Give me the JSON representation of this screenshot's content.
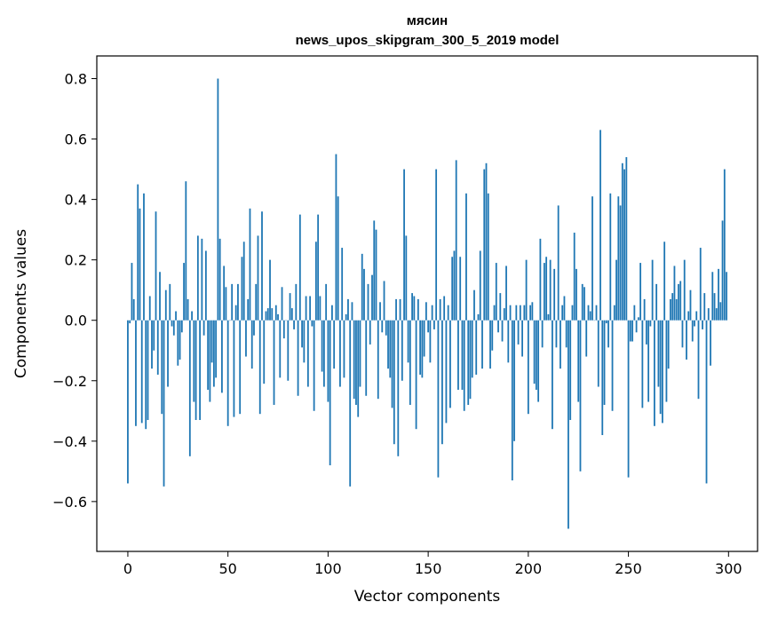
{
  "chart_data": {
    "type": "bar",
    "title": "мясин",
    "subtitle": "news_upos_skipgram_300_5_2019 model",
    "xlabel": "Vector components",
    "ylabel": "Components values",
    "xlim": [
      -15.5,
      314.5
    ],
    "ylim": [
      -0.765,
      0.875
    ],
    "xticks": [
      0,
      50,
      100,
      150,
      200,
      250,
      300
    ],
    "xtick_labels": [
      "0",
      "50",
      "100",
      "150",
      "200",
      "250",
      "300"
    ],
    "yticks": [
      -0.6,
      -0.4,
      -0.2,
      0.0,
      0.2,
      0.4,
      0.6,
      0.8
    ],
    "ytick_labels": [
      "−0.6",
      "−0.4",
      "−0.2",
      "0.0",
      "0.2",
      "0.4",
      "0.6",
      "0.8"
    ],
    "bar_color": "#1f77b4",
    "values": [
      -0.54,
      -0.01,
      0.19,
      0.07,
      -0.35,
      0.45,
      0.37,
      -0.34,
      0.42,
      -0.36,
      -0.33,
      0.08,
      -0.16,
      -0.1,
      0.36,
      -0.18,
      0.16,
      -0.31,
      -0.55,
      0.1,
      -0.22,
      0.12,
      -0.02,
      -0.05,
      0.03,
      -0.15,
      -0.13,
      -0.04,
      0.19,
      0.46,
      0.07,
      -0.45,
      0.03,
      -0.27,
      -0.33,
      0.28,
      -0.33,
      0.27,
      -0.05,
      0.23,
      -0.23,
      -0.27,
      -0.14,
      -0.22,
      -0.19,
      0.8,
      0.27,
      -0.24,
      0.18,
      0.11,
      -0.35,
      0.0,
      0.12,
      -0.32,
      0.05,
      0.12,
      -0.31,
      0.21,
      0.26,
      -0.12,
      0.07,
      0.37,
      -0.16,
      -0.05,
      0.12,
      0.28,
      -0.31,
      0.36,
      -0.21,
      0.03,
      0.04,
      0.2,
      0.04,
      -0.28,
      0.05,
      0.02,
      -0.19,
      0.11,
      -0.06,
      0.0,
      -0.2,
      0.09,
      0.04,
      -0.03,
      0.12,
      -0.25,
      0.35,
      -0.09,
      -0.14,
      0.08,
      -0.22,
      0.08,
      -0.02,
      -0.3,
      0.26,
      0.35,
      0.08,
      -0.17,
      -0.22,
      0.12,
      -0.27,
      -0.48,
      0.05,
      -0.16,
      0.55,
      0.41,
      -0.22,
      0.24,
      -0.19,
      0.02,
      0.07,
      -0.55,
      0.06,
      -0.26,
      -0.28,
      -0.32,
      -0.22,
      0.22,
      0.17,
      -0.25,
      0.12,
      -0.08,
      0.15,
      0.33,
      0.3,
      -0.26,
      0.06,
      -0.04,
      0.13,
      -0.05,
      -0.16,
      -0.19,
      -0.29,
      -0.41,
      0.07,
      -0.45,
      0.07,
      -0.2,
      0.5,
      0.28,
      -0.14,
      -0.28,
      0.09,
      0.08,
      -0.36,
      0.07,
      -0.18,
      -0.19,
      -0.12,
      0.06,
      -0.04,
      -0.14,
      0.05,
      -0.03,
      0.5,
      -0.52,
      0.07,
      -0.41,
      0.08,
      -0.34,
      0.05,
      -0.29,
      0.21,
      0.23,
      0.53,
      -0.23,
      0.21,
      -0.23,
      -0.3,
      0.42,
      -0.28,
      -0.26,
      -0.19,
      0.1,
      -0.18,
      0.02,
      0.23,
      -0.16,
      0.5,
      0.52,
      0.42,
      -0.16,
      -0.1,
      0.05,
      0.19,
      -0.04,
      0.09,
      -0.07,
      0.04,
      0.18,
      -0.14,
      0.05,
      -0.53,
      -0.4,
      0.05,
      -0.08,
      0.05,
      -0.12,
      0.05,
      0.2,
      -0.31,
      0.05,
      0.06,
      -0.21,
      -0.23,
      -0.27,
      0.27,
      -0.09,
      0.19,
      0.21,
      0.02,
      0.2,
      -0.36,
      0.17,
      -0.09,
      0.38,
      -0.16,
      0.05,
      0.08,
      -0.09,
      -0.69,
      -0.33,
      0.05,
      0.29,
      0.17,
      -0.27,
      -0.5,
      0.12,
      0.11,
      -0.12,
      0.05,
      0.03,
      0.41,
      0.0,
      0.05,
      -0.22,
      0.63,
      -0.38,
      -0.28,
      -0.01,
      -0.09,
      0.42,
      -0.3,
      0.05,
      0.2,
      0.41,
      0.38,
      0.52,
      0.5,
      0.54,
      -0.52,
      -0.07,
      -0.07,
      0.05,
      -0.04,
      0.01,
      0.19,
      -0.29,
      0.07,
      -0.08,
      -0.27,
      -0.02,
      0.2,
      -0.35,
      0.12,
      -0.22,
      -0.31,
      -0.34,
      0.26,
      -0.27,
      -0.16,
      0.07,
      0.09,
      0.18,
      0.07,
      0.12,
      0.13,
      -0.09,
      0.2,
      -0.13,
      0.03,
      0.1,
      -0.07,
      -0.02,
      0.03,
      -0.26,
      0.24,
      -0.03,
      0.09,
      -0.54,
      0.04,
      -0.15,
      0.16,
      0.09,
      0.04,
      0.17,
      0.06,
      0.33,
      0.5,
      0.16
    ]
  }
}
